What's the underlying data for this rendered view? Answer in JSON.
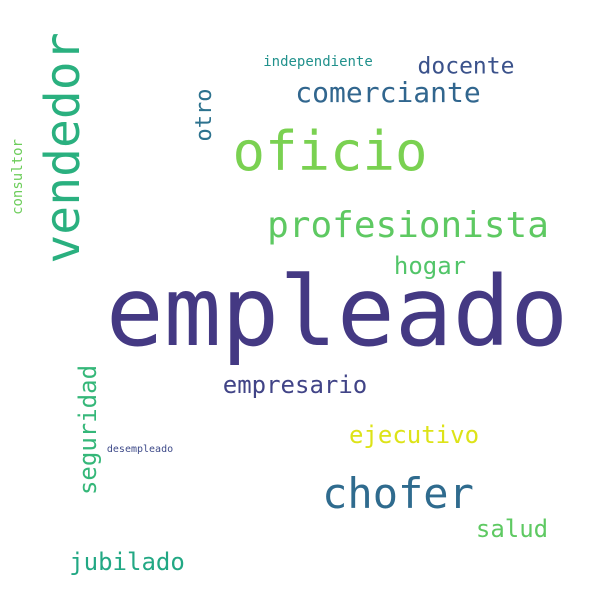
{
  "wordcloud": {
    "words": {
      "empleado": {
        "text": "empleado",
        "color": "#443983"
      },
      "oficio": {
        "text": "oficio",
        "color": "#7ad151"
      },
      "vendedor": {
        "text": "vendedor",
        "color": "#2ab07f"
      },
      "profesionista": {
        "text": "profesionista",
        "color": "#5ec962"
      },
      "chofer": {
        "text": "chofer",
        "color": "#2f6b8e"
      },
      "comerciante": {
        "text": "comerciante",
        "color": "#31668e"
      },
      "empresario": {
        "text": "empresario",
        "color": "#414487"
      },
      "seguridad": {
        "text": "seguridad",
        "color": "#35b779"
      },
      "ejecutivo": {
        "text": "ejecutivo",
        "color": "#dde318"
      },
      "hogar": {
        "text": "hogar",
        "color": "#52c569"
      },
      "salud": {
        "text": "salud",
        "color": "#5ec962"
      },
      "jubilado": {
        "text": "jubilado",
        "color": "#22a884"
      },
      "docente": {
        "text": "docente",
        "color": "#3b528b"
      },
      "otro": {
        "text": "otro",
        "color": "#2c728e"
      },
      "independiente": {
        "text": "independiente",
        "color": "#21918c"
      },
      "consultor": {
        "text": "consultor",
        "color": "#6ccd5a"
      },
      "desempleado": {
        "text": "desempleado",
        "color": "#3e4a89"
      }
    }
  }
}
